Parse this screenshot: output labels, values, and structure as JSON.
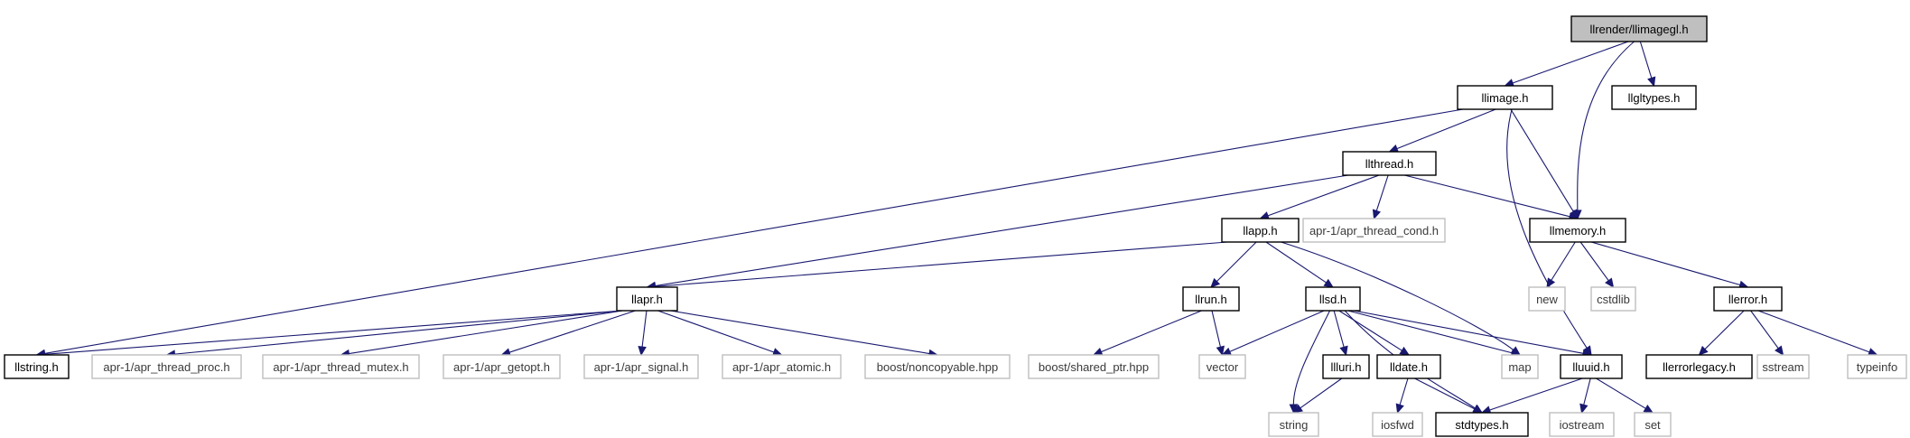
{
  "graph": {
    "colors": {
      "edge": "#191970",
      "node_border": "#000000",
      "root_fill": "#bfbfbf",
      "external_border": "#bfbfbf"
    },
    "nodes": [
      {
        "id": "n0",
        "label": "llrender/llimagegl.h",
        "kind": "root"
      },
      {
        "id": "n1",
        "label": "llimage.h",
        "kind": "doc"
      },
      {
        "id": "n2",
        "label": "llgltypes.h",
        "kind": "doc"
      },
      {
        "id": "n3",
        "label": "llthread.h",
        "kind": "doc"
      },
      {
        "id": "n4",
        "label": "llmemory.h",
        "kind": "doc"
      },
      {
        "id": "n5",
        "label": "llapp.h",
        "kind": "doc"
      },
      {
        "id": "n6",
        "label": "apr-1/apr_thread_cond.h",
        "kind": "ext"
      },
      {
        "id": "n7",
        "label": "llapr.h",
        "kind": "doc"
      },
      {
        "id": "n8",
        "label": "llrun.h",
        "kind": "doc"
      },
      {
        "id": "n9",
        "label": "llsd.h",
        "kind": "doc"
      },
      {
        "id": "n10",
        "label": "new",
        "kind": "ext"
      },
      {
        "id": "n11",
        "label": "cstdlib",
        "kind": "ext"
      },
      {
        "id": "n12",
        "label": "llerror.h",
        "kind": "doc"
      },
      {
        "id": "n13",
        "label": "llstring.h",
        "kind": "doc"
      },
      {
        "id": "n14",
        "label": "apr-1/apr_thread_proc.h",
        "kind": "ext"
      },
      {
        "id": "n15",
        "label": "apr-1/apr_thread_mutex.h",
        "kind": "ext"
      },
      {
        "id": "n16",
        "label": "apr-1/apr_getopt.h",
        "kind": "ext"
      },
      {
        "id": "n17",
        "label": "apr-1/apr_signal.h",
        "kind": "ext"
      },
      {
        "id": "n18",
        "label": "apr-1/apr_atomic.h",
        "kind": "ext"
      },
      {
        "id": "n19",
        "label": "boost/noncopyable.hpp",
        "kind": "ext"
      },
      {
        "id": "n20",
        "label": "boost/shared_ptr.hpp",
        "kind": "ext"
      },
      {
        "id": "n21",
        "label": "vector",
        "kind": "ext"
      },
      {
        "id": "n22",
        "label": "map",
        "kind": "ext"
      },
      {
        "id": "n23",
        "label": "lluuid.h",
        "kind": "doc"
      },
      {
        "id": "n24",
        "label": "llerrorlegacy.h",
        "kind": "doc"
      },
      {
        "id": "n25",
        "label": "sstream",
        "kind": "ext"
      },
      {
        "id": "n26",
        "label": "typeinfo",
        "kind": "ext"
      },
      {
        "id": "n27",
        "label": "llluri.h",
        "kind": "doc"
      },
      {
        "id": "n28",
        "label": "lldate.h",
        "kind": "doc"
      },
      {
        "id": "n29",
        "label": "string",
        "kind": "ext"
      },
      {
        "id": "n30",
        "label": "iosfwd",
        "kind": "ext"
      },
      {
        "id": "n31",
        "label": "stdtypes.h",
        "kind": "doc"
      },
      {
        "id": "n32",
        "label": "iostream",
        "kind": "ext"
      },
      {
        "id": "n33",
        "label": "set",
        "kind": "ext"
      }
    ],
    "edges": [
      [
        "n0",
        "n1"
      ],
      [
        "n0",
        "n2"
      ],
      [
        "n0",
        "n4"
      ],
      [
        "n1",
        "n3"
      ],
      [
        "n1",
        "n4"
      ],
      [
        "n1",
        "n13"
      ],
      [
        "n1",
        "n23"
      ],
      [
        "n3",
        "n5"
      ],
      [
        "n3",
        "n6"
      ],
      [
        "n3",
        "n4"
      ],
      [
        "n3",
        "n7"
      ],
      [
        "n5",
        "n7"
      ],
      [
        "n5",
        "n8"
      ],
      [
        "n5",
        "n9"
      ],
      [
        "n5",
        "n22"
      ],
      [
        "n4",
        "n10"
      ],
      [
        "n4",
        "n11"
      ],
      [
        "n4",
        "n12"
      ],
      [
        "n7",
        "n13"
      ],
      [
        "n7",
        "n14"
      ],
      [
        "n7",
        "n15"
      ],
      [
        "n7",
        "n16"
      ],
      [
        "n7",
        "n17"
      ],
      [
        "n7",
        "n18"
      ],
      [
        "n7",
        "n19"
      ],
      [
        "n8",
        "n20"
      ],
      [
        "n8",
        "n21"
      ],
      [
        "n9",
        "n21"
      ],
      [
        "n9",
        "n27"
      ],
      [
        "n9",
        "n28"
      ],
      [
        "n9",
        "n29"
      ],
      [
        "n9",
        "n22"
      ],
      [
        "n9",
        "n23"
      ],
      [
        "n9",
        "n31"
      ],
      [
        "n12",
        "n24"
      ],
      [
        "n12",
        "n25"
      ],
      [
        "n12",
        "n26"
      ],
      [
        "n27",
        "n29"
      ],
      [
        "n28",
        "n30"
      ],
      [
        "n28",
        "n31"
      ],
      [
        "n23",
        "n31"
      ],
      [
        "n23",
        "n32"
      ],
      [
        "n23",
        "n33"
      ]
    ]
  }
}
